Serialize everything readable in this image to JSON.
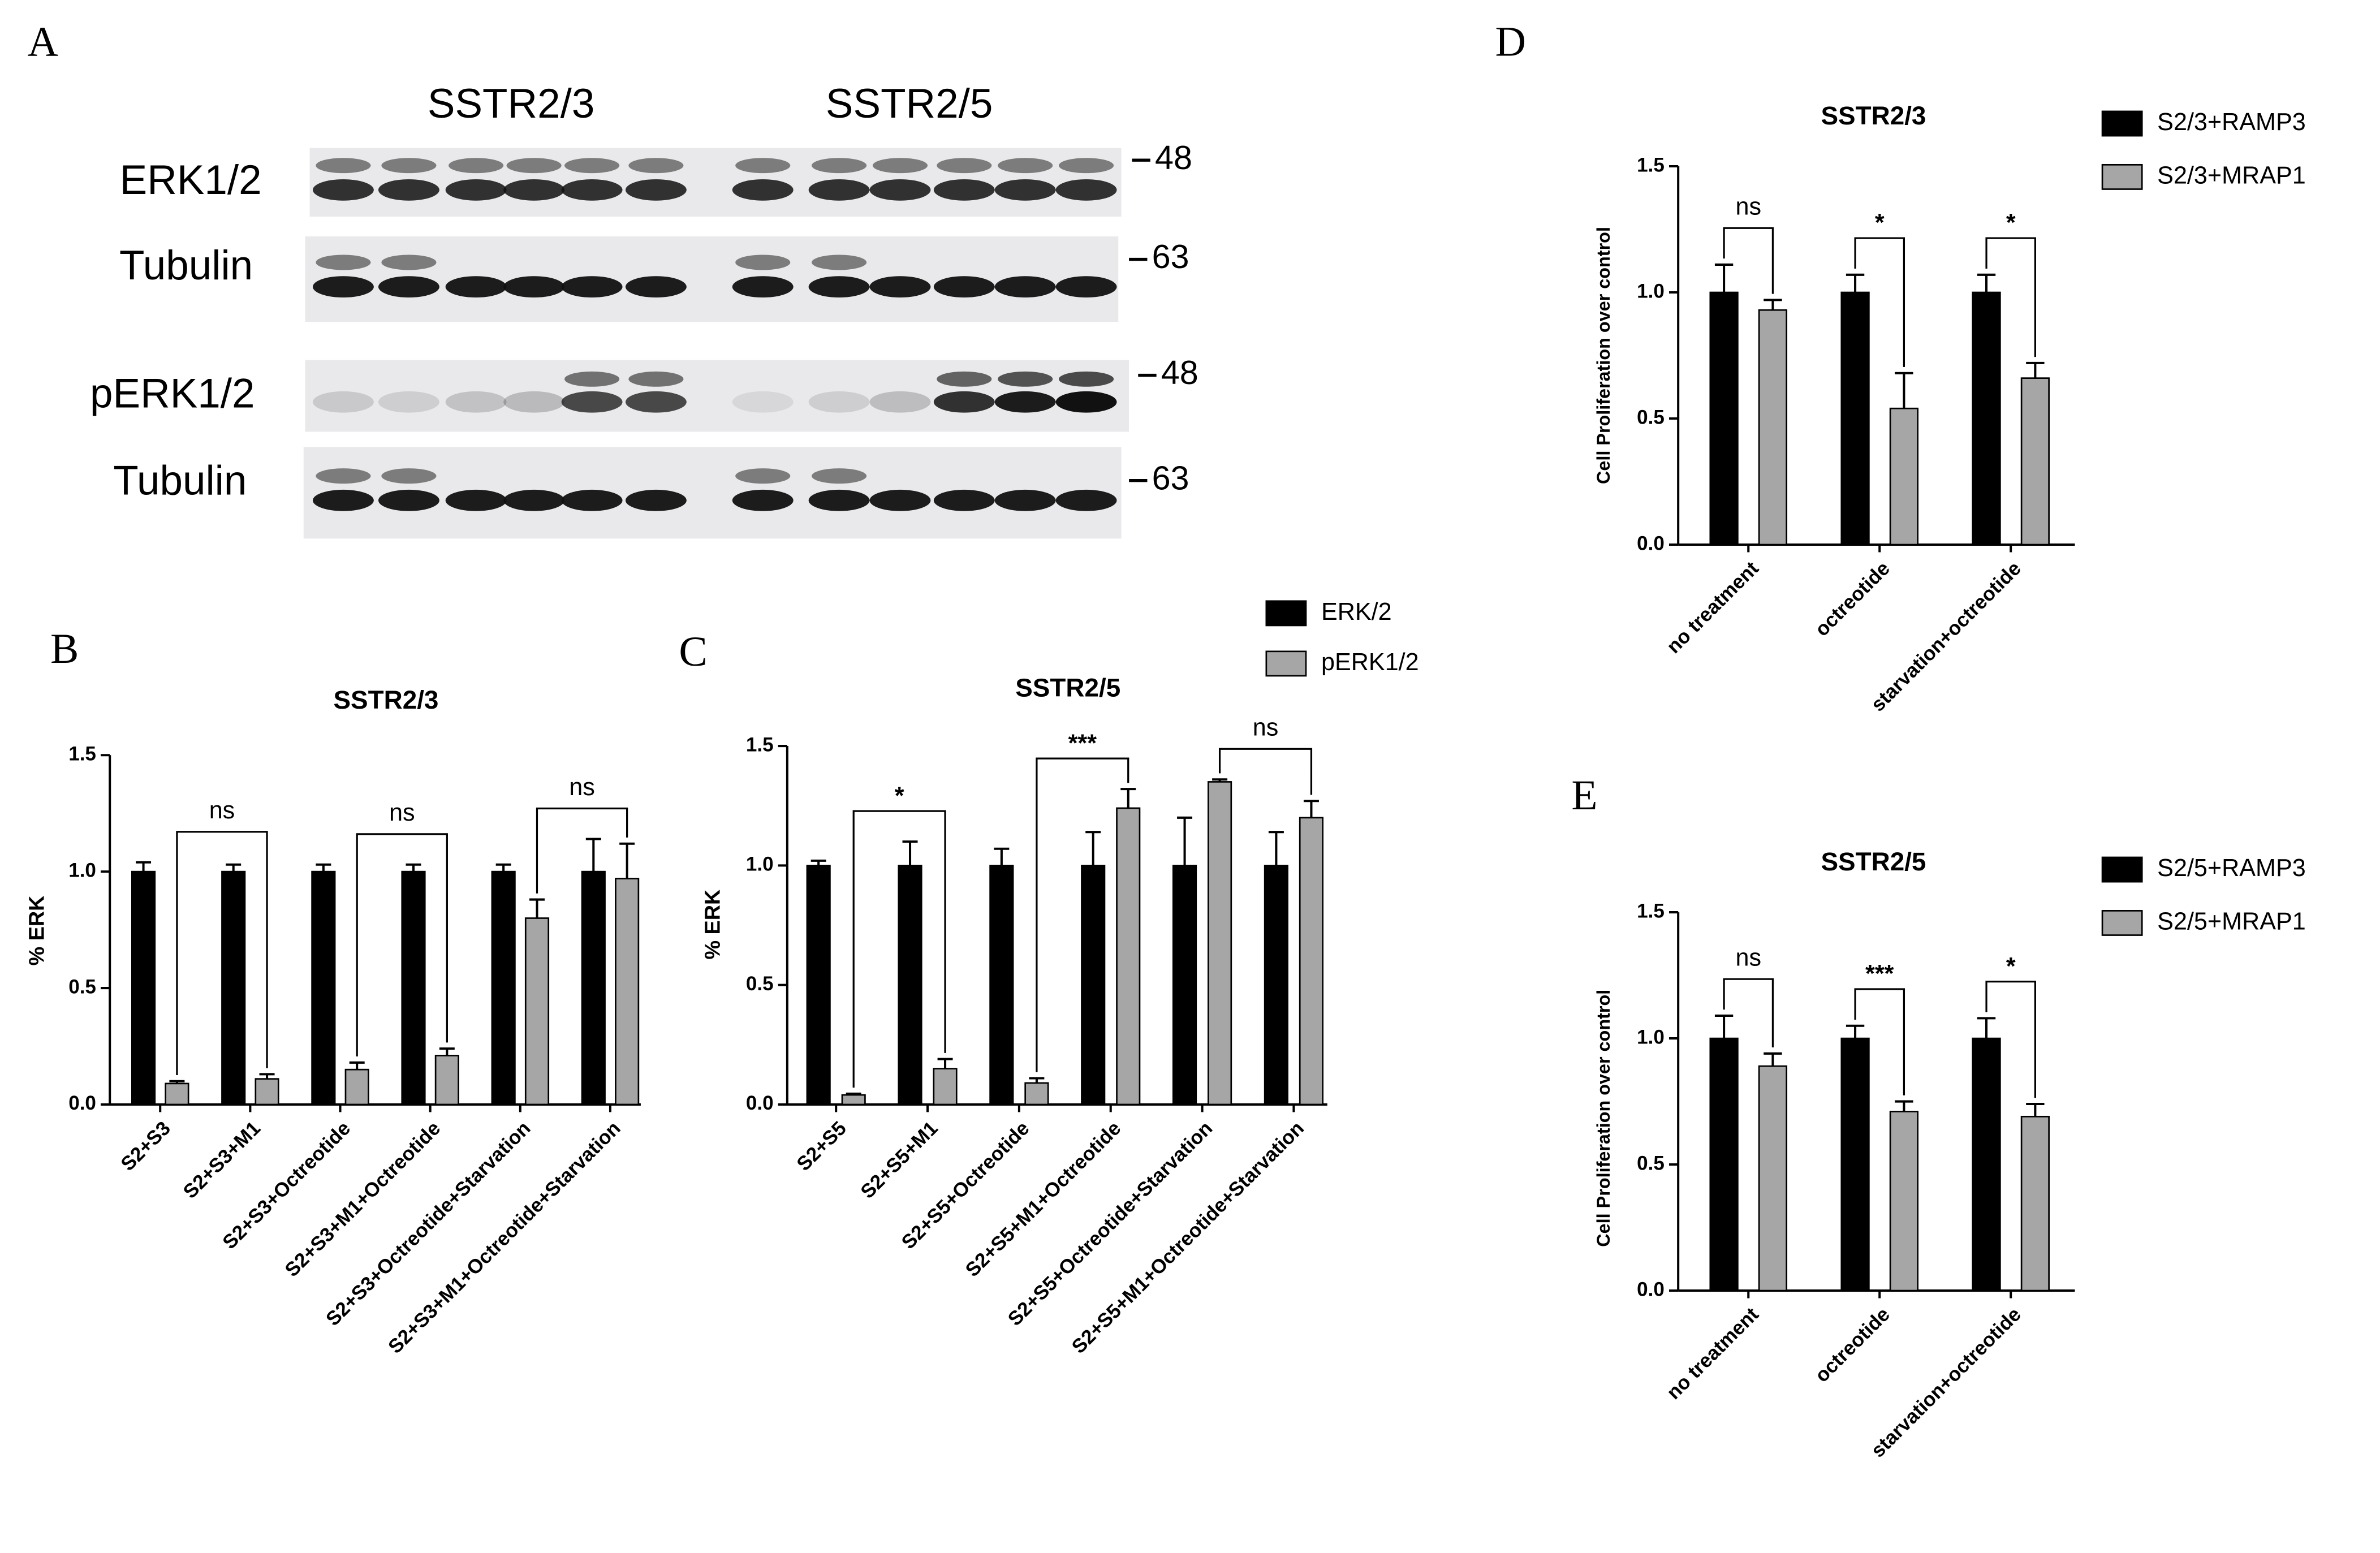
{
  "blot": {
    "panel_label": "A",
    "groups": [
      "SSTR2/3",
      "SSTR2/5"
    ],
    "rows": [
      {
        "label": "ERK1/2",
        "marker": 48
      },
      {
        "label": "Tubulin",
        "marker": 63
      },
      {
        "label": "pERK1/2",
        "marker": 48
      },
      {
        "label": "Tubulin",
        "marker": 63
      }
    ]
  },
  "chart_data": [
    {
      "type": "bar",
      "panel_label": "B",
      "title": "SSTR2/3",
      "y_label": "% ERK",
      "categories": [
        "S2+S3",
        "S2+S3+M1",
        "S2+S3+Octreotide",
        "S2+S3+M1+Octreotide",
        "S2+S3+Octreotide+Starvation",
        "S2+S3+M1+Octreotide+Starvation"
      ],
      "series": [
        {
          "color": "#000000",
          "values": [
            1,
            1,
            1,
            1,
            1,
            1
          ],
          "errors": [
            0.04,
            0.03,
            0.03,
            0.03,
            0.03,
            0.14
          ]
        },
        {
          "color": "#a6a6a6",
          "values": [
            0.09,
            0.11,
            0.15,
            0.21,
            0.8,
            0.97
          ],
          "errors": [
            0.01,
            0.02,
            0.03,
            0.03,
            0.08,
            0.15
          ]
        }
      ],
      "comparisons": [
        {
          "label": "ns",
          "categories": [
            0,
            1
          ]
        },
        {
          "label": "ns",
          "categories": [
            2,
            3
          ]
        },
        {
          "label": "ns",
          "categories": [
            4,
            5
          ]
        }
      ],
      "ylim": [
        0,
        1.5
      ],
      "yticks": [
        {
          "value": 0,
          "label": "0.0"
        },
        0.5,
        {
          "value": 1,
          "label": "1.0"
        },
        1.5
      ]
    },
    {
      "type": "bar",
      "panel_label": "C",
      "title": "SSTR2/5",
      "y_label": "% ERK",
      "categories": [
        "S2+S5",
        "S2+S5+M1",
        "S2+S5+Octreotide",
        "S2+S5+M1+Octreotide",
        "S2+S5+Octreotide+Starvation",
        "S2+S5+M1+Octreotide+Starvation"
      ],
      "series": [
        {
          "name": "ERK/2",
          "color": "#000000",
          "values": [
            1,
            1,
            1,
            1,
            1,
            1
          ],
          "errors": [
            0.02,
            0.1,
            0.07,
            0.14,
            0.2,
            0.14
          ]
        },
        {
          "name": "pERK1/2",
          "color": "#a6a6a6",
          "values": [
            0.04,
            0.15,
            0.09,
            1.24,
            1.35,
            1.2
          ],
          "errors": [
            0.005,
            0.04,
            0.02,
            0.08,
            0.01,
            0.07
          ]
        }
      ],
      "comparisons": [
        {
          "label": "*",
          "categories": [
            0,
            1
          ]
        },
        {
          "label": "***",
          "categories": [
            2,
            3
          ]
        },
        {
          "label": "ns",
          "categories": [
            4,
            5
          ]
        }
      ],
      "ylim": [
        0,
        1.5
      ],
      "yticks": [
        {
          "value": 0,
          "label": "0.0"
        },
        0.5,
        {
          "value": 1,
          "label": "1.0"
        },
        1.5
      ]
    },
    {
      "type": "bar",
      "panel_label": "D",
      "title": "SSTR2/3",
      "y_label": "Cell Proliferation over control",
      "categories": [
        "no treatment",
        "octreotide",
        "starvation+octreotide"
      ],
      "series": [
        {
          "name": "S2/3+RAMP3",
          "color": "#000000",
          "values": [
            1,
            1,
            1
          ],
          "errors": [
            0.11,
            0.07,
            0.07
          ]
        },
        {
          "name": "S2/3+MRAP1",
          "color": "#a6a6a6",
          "values": [
            0.93,
            0.54,
            0.66
          ],
          "errors": [
            0.04,
            0.14,
            0.06
          ]
        }
      ],
      "comparisons": [
        {
          "label": "ns",
          "categories": [
            0
          ]
        },
        {
          "label": "*",
          "categories": [
            1
          ]
        },
        {
          "label": "*",
          "categories": [
            2
          ]
        }
      ],
      "ylim": [
        0,
        1.5
      ],
      "yticks": [
        {
          "value": 0,
          "label": "0.0"
        },
        0.5,
        {
          "value": 1,
          "label": "1.0"
        },
        1.5
      ]
    },
    {
      "type": "bar",
      "panel_label": "E",
      "title": "SSTR2/5",
      "y_label": "Cell Proliferation over control",
      "categories": [
        "no treatment",
        "octreotide",
        "starvation+octreotide"
      ],
      "series": [
        {
          "name": "S2/5+RAMP3",
          "color": "#000000",
          "values": [
            1,
            1,
            1
          ],
          "errors": [
            0.09,
            0.05,
            0.08
          ]
        },
        {
          "name": "S2/5+MRAP1",
          "color": "#a6a6a6",
          "values": [
            0.89,
            0.71,
            0.69
          ],
          "errors": [
            0.05,
            0.04,
            0.05
          ]
        }
      ],
      "comparisons": [
        {
          "label": "ns",
          "categories": [
            0
          ]
        },
        {
          "label": "***",
          "categories": [
            1
          ]
        },
        {
          "label": "*",
          "categories": [
            2
          ]
        }
      ],
      "ylim": [
        0,
        1.5
      ],
      "yticks": [
        {
          "value": 0,
          "label": "0.0"
        },
        0.5,
        {
          "value": 1,
          "label": "1.0"
        },
        1.5
      ]
    }
  ]
}
